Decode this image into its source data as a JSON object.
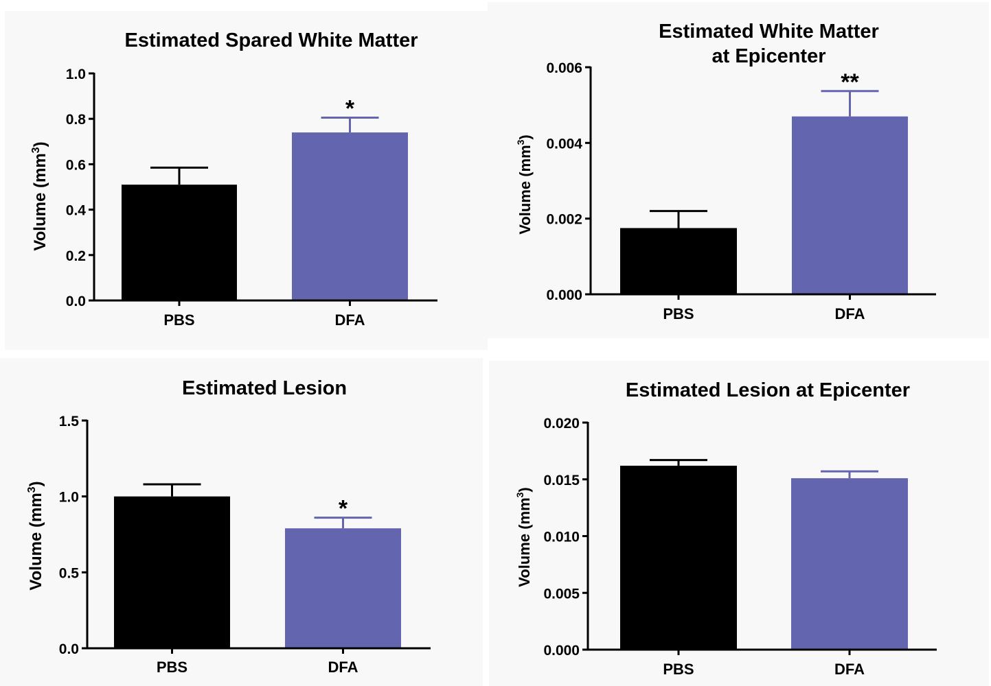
{
  "chart_data": [
    {
      "type": "bar",
      "title": [
        "Estimated Spared White Matter"
      ],
      "ylabel": "Volume (mm",
      "ylabel_sup": "3",
      "ylabel_close": ")",
      "categories": [
        "PBS",
        "DFA"
      ],
      "values": [
        0.51,
        0.74
      ],
      "errors": [
        0.075,
        0.065
      ],
      "significance": [
        "",
        "*"
      ],
      "colors": [
        "#000000",
        "#6366ae"
      ],
      "ylim": [
        0,
        1.0
      ],
      "yticks": [
        0.0,
        0.2,
        0.4,
        0.6,
        0.8,
        1.0
      ],
      "ytick_labels": [
        "0.0",
        "0.2",
        "0.4",
        "0.6",
        "0.8",
        "1.0"
      ]
    },
    {
      "type": "bar",
      "title": [
        "Estimated White Matter",
        "at Epicenter"
      ],
      "ylabel": "Volume (mm",
      "ylabel_sup": "3",
      "ylabel_close": ")",
      "categories": [
        "PBS",
        "DFA"
      ],
      "values": [
        0.00175,
        0.0047
      ],
      "errors": [
        0.00045,
        0.00067
      ],
      "significance": [
        "",
        "**"
      ],
      "colors": [
        "#000000",
        "#6366ae"
      ],
      "ylim": [
        0,
        0.006
      ],
      "yticks": [
        0.0,
        0.002,
        0.004,
        0.006
      ],
      "ytick_labels": [
        "0.000",
        "0.002",
        "0.004",
        "0.006"
      ]
    },
    {
      "type": "bar",
      "title": [
        "Estimated Lesion"
      ],
      "ylabel": "Volume (mm",
      "ylabel_sup": "3",
      "ylabel_close": ")",
      "categories": [
        "PBS",
        "DFA"
      ],
      "values": [
        1.0,
        0.79
      ],
      "errors": [
        0.08,
        0.07
      ],
      "significance": [
        "",
        "*"
      ],
      "colors": [
        "#000000",
        "#6366ae"
      ],
      "ylim": [
        0,
        1.5
      ],
      "yticks": [
        0.0,
        0.5,
        1.0,
        1.5
      ],
      "ytick_labels": [
        "0.0",
        "0.5",
        "1.0",
        "1.5"
      ]
    },
    {
      "type": "bar",
      "title": [
        "Estimated Lesion at Epicenter"
      ],
      "ylabel": "Volume (mm",
      "ylabel_sup": "3",
      "ylabel_close": ")",
      "categories": [
        "PBS",
        "DFA"
      ],
      "values": [
        0.0162,
        0.0151
      ],
      "errors": [
        0.0005,
        0.0006
      ],
      "significance": [
        "",
        ""
      ],
      "colors": [
        "#000000",
        "#6366ae"
      ],
      "ylim": [
        0,
        0.02
      ],
      "yticks": [
        0.0,
        0.005,
        0.01,
        0.015,
        0.02
      ],
      "ytick_labels": [
        "0.000",
        "0.005",
        "0.010",
        "0.015",
        "0.020"
      ]
    }
  ]
}
